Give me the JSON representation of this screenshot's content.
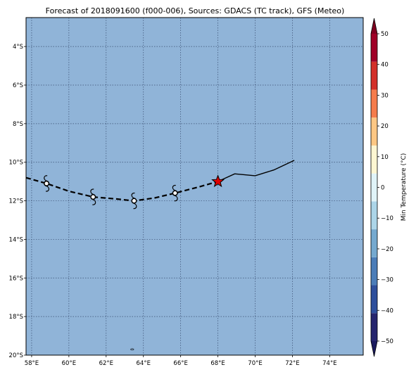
{
  "title": "Forecast of 2018091600 (f000-006), Sources: GDACS (TC track), GFS (Meteo)",
  "map": {
    "lon_range": [
      57.7,
      75.8
    ],
    "lat_range": [
      -20.0,
      -2.5
    ],
    "ocean_color": "#90b4d8",
    "grid": "dotted",
    "lon_ticks": [
      {
        "value": 58,
        "label": "58°E"
      },
      {
        "value": 60,
        "label": "60°E"
      },
      {
        "value": 62,
        "label": "62°E"
      },
      {
        "value": 64,
        "label": "64°E"
      },
      {
        "value": 66,
        "label": "66°E"
      },
      {
        "value": 68,
        "label": "68°E"
      },
      {
        "value": 70,
        "label": "70°E"
      },
      {
        "value": 72,
        "label": "72°E"
      },
      {
        "value": 74,
        "label": "74°E"
      }
    ],
    "lat_ticks": [
      {
        "value": -4,
        "label": "4°S"
      },
      {
        "value": -6,
        "label": "6°S"
      },
      {
        "value": -8,
        "label": "8°S"
      },
      {
        "value": -10,
        "label": "10°S"
      },
      {
        "value": -12,
        "label": "12°S"
      },
      {
        "value": -14,
        "label": "14°S"
      },
      {
        "value": -16,
        "label": "16°S"
      },
      {
        "value": -18,
        "label": "18°S"
      },
      {
        "value": -20,
        "label": "20°S"
      }
    ]
  },
  "track": {
    "past": [
      [
        72.1,
        -9.9
      ],
      [
        71.0,
        -10.4
      ],
      [
        70.0,
        -10.7
      ],
      [
        68.9,
        -10.6
      ],
      [
        68.0,
        -11.0
      ]
    ],
    "forecast": [
      [
        57.7,
        -10.8
      ],
      [
        58.8,
        -11.1
      ],
      [
        60.0,
        -11.5
      ],
      [
        61.3,
        -11.8
      ],
      [
        62.5,
        -11.9
      ],
      [
        63.5,
        -12.0
      ],
      [
        64.6,
        -11.85
      ],
      [
        65.7,
        -11.6
      ],
      [
        66.9,
        -11.3
      ],
      [
        68.0,
        -11.0
      ]
    ],
    "storm_symbols": [
      [
        58.8,
        -11.1
      ],
      [
        61.3,
        -11.8
      ],
      [
        63.5,
        -12.0
      ],
      [
        65.7,
        -11.6
      ]
    ],
    "current_position": [
      68.0,
      -11.0
    ],
    "current_marker_color": "#e00000"
  },
  "islands": [
    [
      63.4,
      -19.7
    ]
  ],
  "colorbar": {
    "label": "Min Temperature (°C)",
    "min": -50,
    "max": 50,
    "extend": "both",
    "ticks": [
      {
        "value": 50,
        "label": "50"
      },
      {
        "value": 40,
        "label": "40"
      },
      {
        "value": 30,
        "label": "30"
      },
      {
        "value": 20,
        "label": "20"
      },
      {
        "value": 10,
        "label": "10"
      },
      {
        "value": 0,
        "label": "0"
      },
      {
        "value": -10,
        "label": "−10"
      },
      {
        "value": -20,
        "label": "−20"
      },
      {
        "value": -30,
        "label": "−30"
      },
      {
        "value": -40,
        "label": "−40"
      },
      {
        "value": -50,
        "label": "−50"
      }
    ],
    "colors": [
      "#26256e",
      "#2e4f9c",
      "#4b7db8",
      "#75a9cf",
      "#acd5e8",
      "#e0f3f8",
      "#fef6d2",
      "#fdc784",
      "#f57c4c",
      "#d3302a",
      "#a00027"
    ],
    "under_color": "#1a1a5e",
    "over_color": "#7f0020"
  }
}
